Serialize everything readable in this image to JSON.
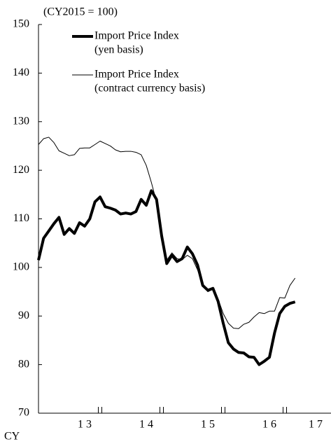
{
  "chart_data": {
    "type": "line",
    "unit_label": "(CY2015 = 100)",
    "x_axis_label": "CY",
    "x": [
      13.0,
      13.083,
      13.167,
      13.25,
      13.333,
      13.417,
      13.5,
      13.583,
      13.667,
      13.75,
      13.833,
      13.917,
      14.0,
      14.083,
      14.167,
      14.25,
      14.333,
      14.417,
      14.5,
      14.583,
      14.667,
      14.75,
      14.833,
      14.917,
      15.0,
      15.083,
      15.167,
      15.25,
      15.333,
      15.417,
      15.5,
      15.583,
      15.667,
      15.75,
      15.833,
      15.917,
      16.0,
      16.083,
      16.167,
      16.25,
      16.333,
      16.417,
      16.5,
      16.583,
      16.667,
      16.75,
      16.833,
      16.917,
      17.0,
      17.083,
      17.167
    ],
    "series": [
      {
        "name": "Import Price Index",
        "name_detail": "(yen basis)",
        "color": "#000000",
        "width": 4,
        "values": [
          101.5,
          106,
          107.5,
          109,
          110.3,
          106.8,
          108,
          107,
          109.2,
          108.5,
          110,
          113.5,
          114.5,
          112.5,
          112.2,
          111.8,
          111,
          111.2,
          111,
          111.5,
          114,
          112.8,
          115.8,
          114,
          106.5,
          100.8,
          102.5,
          101.2,
          101.8,
          104.2,
          102.8,
          100.5,
          96.3,
          95.3,
          95.7,
          93,
          88.5,
          84.5,
          83.2,
          82.5,
          82.4,
          81.6,
          81.5,
          80,
          80.7,
          81.5,
          86.5,
          90.5,
          92,
          92.6,
          92.9
        ]
      },
      {
        "name": "Import Price Index",
        "name_detail": "(contract currency basis)",
        "color": "#000000",
        "width": 1,
        "values": [
          125.3,
          126.5,
          126.8,
          125.7,
          124,
          123.5,
          123,
          123.2,
          124.5,
          124.6,
          124.6,
          125.3,
          126,
          125.5,
          125,
          124.2,
          123.8,
          123.9,
          123.9,
          123.7,
          123.2,
          121,
          117.5,
          113.5,
          106.5,
          101.5,
          103,
          101.8,
          101.6,
          102.5,
          101.8,
          99.5,
          96.5,
          95,
          95.5,
          93.5,
          90.5,
          88.5,
          87.5,
          87.4,
          88.3,
          88.7,
          89.8,
          90.7,
          90.5,
          91,
          91,
          93.8,
          93.7,
          96.3,
          97.8
        ]
      }
    ],
    "xlim": [
      13,
      17.75
    ],
    "xticks": [
      {
        "value": 13.75,
        "label": "1 3"
      },
      {
        "value": 14.75,
        "label": "1 4"
      },
      {
        "value": 15.75,
        "label": "1 5"
      },
      {
        "value": 16.75,
        "label": "1 6"
      },
      {
        "value": 17.5,
        "label": "1 7"
      }
    ],
    "year_boundaries": [
      14,
      15,
      16,
      17
    ],
    "ylim": [
      70,
      150
    ],
    "yticks": [
      70,
      80,
      90,
      100,
      110,
      120,
      130,
      140,
      150
    ],
    "legend": "upper left"
  }
}
